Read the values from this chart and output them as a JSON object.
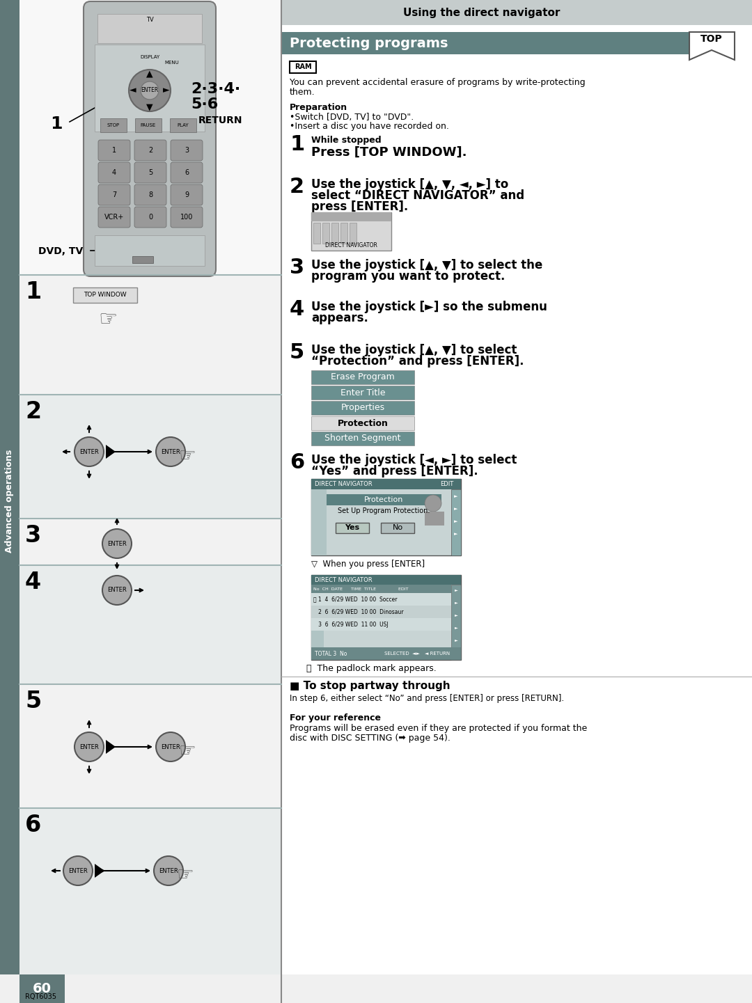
{
  "page_bg": "#ffffff",
  "sidebar_bg": "#607878",
  "sidebar_text": "Advanced operations",
  "header_bg": "#c5cccc",
  "header_text": "Using the direct navigator",
  "section_bg": "#5f8080",
  "section_text": "Protecting programs",
  "ram_text": "RAM",
  "intro_line1": "You can prevent accidental erasure of programs by write-protecting",
  "intro_line2": "them.",
  "prep_title": "Preparation",
  "prep_b1": "Switch [DVD, TV] to \"DVD\".",
  "prep_b2": "Insert a disc you have recorded on.",
  "step1_sub": "While stopped",
  "step1_main": "Press [TOP WINDOW].",
  "step2_l1": "Use the joystick [▲, ▼, ◄, ►] to",
  "step2_l2": "select “DIRECT NAVIGATOR” and",
  "step2_l3": "press [ENTER].",
  "step3_l1": "Use the joystick [▲, ▼] to select the",
  "step3_l2": "program you want to protect.",
  "step4_l1": "Use the joystick [►] so the submenu",
  "step4_l2": "appears.",
  "step5_l1": "Use the joystick [▲, ▼] to select",
  "step5_l2": "“Protection” and press [ENTER].",
  "step6_l1": "Use the joystick [◄, ►] to select",
  "step6_l2": "“Yes” and press [ENTER].",
  "menu_items": [
    {
      "text": "Erase Program",
      "sel": false
    },
    {
      "text": "Enter Title",
      "sel": false
    },
    {
      "text": "Properties",
      "sel": false
    },
    {
      "text": "Protection",
      "sel": true
    },
    {
      "text": "Shorten Segment",
      "sel": false
    }
  ],
  "when_note": "▽  When you press [ENTER]",
  "padlock_note": "The padlock mark appears.",
  "stop_title": "■ To stop partway through",
  "stop_text": "In step 6, either select “No” and press [ENTER] or press [RETURN].",
  "ref_title": "For your reference",
  "ref_l1": "Programs will be erased even if they are protected if you format the",
  "ref_l2": "disc with DISC SETTING (➡ page 54).",
  "page_num": "60",
  "page_code": "RQT6035",
  "menu_unsel_bg": "#6a9090",
  "menu_sel_bg": "#dcdcdc",
  "left_dividers": [
    395,
    567,
    745,
    812,
    983,
    1161
  ]
}
